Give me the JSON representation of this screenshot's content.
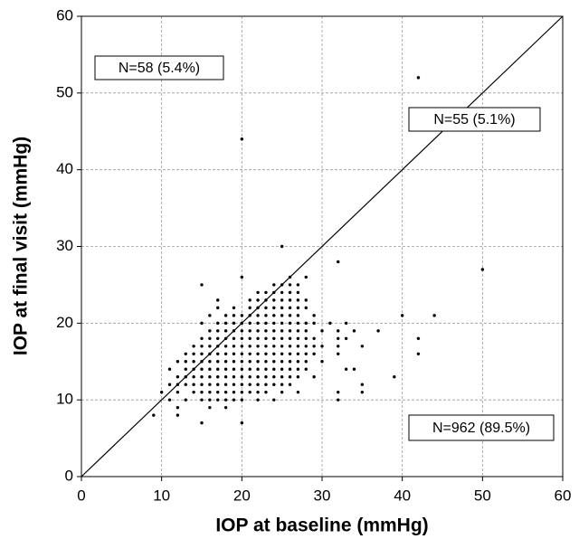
{
  "chart_data": {
    "type": "scatter",
    "x_label": "IOP at baseline (mmHg)",
    "y_label": "IOP at final visit (mmHg)",
    "xlim": [
      0,
      60
    ],
    "ylim": [
      0,
      60
    ],
    "xticks": [
      0,
      10,
      20,
      30,
      40,
      50,
      60
    ],
    "yticks": [
      0,
      10,
      20,
      30,
      40,
      50,
      60
    ],
    "grid": true,
    "identity_line": true,
    "color": "#000000",
    "annotations": [
      "N=58 (5.4%)",
      "N=55 (5.1%)",
      "N=962 (89.5%)"
    ],
    "x": [
      20,
      26,
      28,
      15,
      24,
      25,
      26,
      27,
      22,
      23,
      24,
      25,
      26,
      27,
      17,
      21,
      22,
      23,
      24,
      25,
      26,
      27,
      28,
      17,
      19,
      21,
      22,
      23,
      24,
      25,
      26,
      27,
      28,
      16,
      18,
      19,
      20,
      21,
      22,
      23,
      24,
      25,
      26,
      27,
      29,
      15,
      17,
      18,
      19,
      20,
      21,
      22,
      23,
      24,
      25,
      26,
      27,
      28,
      29,
      31,
      33,
      16,
      17,
      18,
      19,
      20,
      21,
      22,
      23,
      24,
      25,
      26,
      27,
      28,
      30,
      32,
      34,
      37,
      15,
      16,
      17,
      18,
      19,
      20,
      21,
      22,
      23,
      24,
      25,
      26,
      27,
      28,
      29,
      32,
      33,
      14,
      15,
      16,
      17,
      18,
      19,
      20,
      21,
      22,
      23,
      24,
      25,
      26,
      27,
      28,
      29,
      30,
      32,
      35,
      13,
      14,
      15,
      16,
      17,
      18,
      19,
      20,
      21,
      22,
      23,
      24,
      25,
      26,
      27,
      28,
      29,
      32,
      12,
      13,
      14,
      15,
      16,
      17,
      18,
      19,
      20,
      21,
      22,
      23,
      24,
      25,
      26,
      27,
      28,
      30,
      11,
      13,
      14,
      15,
      16,
      17,
      18,
      19,
      20,
      21,
      22,
      23,
      24,
      25,
      26,
      27,
      28,
      33,
      34,
      12,
      13,
      14,
      15,
      16,
      17,
      18,
      19,
      20,
      21,
      22,
      23,
      24,
      25,
      26,
      27,
      29,
      39,
      11,
      12,
      13,
      14,
      15,
      16,
      17,
      18,
      19,
      20,
      21,
      22,
      23,
      24,
      25,
      26,
      35,
      10,
      12,
      14,
      15,
      16,
      17,
      18,
      19,
      20,
      21,
      22,
      23,
      25,
      27,
      32,
      35,
      11,
      13,
      15,
      16,
      17,
      18,
      19,
      20,
      22,
      24,
      32,
      12,
      16,
      18,
      9,
      12,
      15,
      20,
      20,
      42,
      50,
      44,
      40,
      42,
      42,
      32,
      25
    ],
    "y": [
      26,
      26,
      26,
      25,
      25,
      25,
      25,
      25,
      24,
      24,
      24,
      24,
      24,
      24,
      23,
      23,
      23,
      23,
      23,
      23,
      23,
      23,
      23,
      22,
      22,
      22,
      22,
      22,
      22,
      22,
      22,
      22,
      22,
      21,
      21,
      21,
      21,
      21,
      21,
      21,
      21,
      21,
      21,
      21,
      21,
      20,
      20,
      20,
      20,
      20,
      20,
      20,
      20,
      20,
      20,
      20,
      20,
      20,
      20,
      20,
      20,
      19,
      19,
      19,
      19,
      19,
      19,
      19,
      19,
      19,
      19,
      19,
      19,
      19,
      19,
      19,
      19,
      19,
      18,
      18,
      18,
      18,
      18,
      18,
      18,
      18,
      18,
      18,
      18,
      18,
      18,
      18,
      18,
      18,
      18,
      17,
      17,
      17,
      17,
      17,
      17,
      17,
      17,
      17,
      17,
      17,
      17,
      17,
      17,
      17,
      17,
      17,
      17,
      17,
      16,
      16,
      16,
      16,
      16,
      16,
      16,
      16,
      16,
      16,
      16,
      16,
      16,
      16,
      16,
      16,
      16,
      16,
      15,
      15,
      15,
      15,
      15,
      15,
      15,
      15,
      15,
      15,
      15,
      15,
      15,
      15,
      15,
      15,
      15,
      15,
      14,
      14,
      14,
      14,
      14,
      14,
      14,
      14,
      14,
      14,
      14,
      14,
      14,
      14,
      14,
      14,
      14,
      14,
      14,
      13,
      13,
      13,
      13,
      13,
      13,
      13,
      13,
      13,
      13,
      13,
      13,
      13,
      13,
      13,
      13,
      13,
      13,
      12,
      12,
      12,
      12,
      12,
      12,
      12,
      12,
      12,
      12,
      12,
      12,
      12,
      12,
      12,
      12,
      12,
      11,
      11,
      11,
      11,
      11,
      11,
      11,
      11,
      11,
      11,
      11,
      11,
      11,
      11,
      11,
      11,
      10,
      10,
      10,
      10,
      10,
      10,
      10,
      10,
      10,
      10,
      10,
      9,
      9,
      9,
      8,
      8,
      7,
      7,
      44,
      52,
      27,
      21,
      21,
      18,
      16,
      28,
      30
    ]
  }
}
